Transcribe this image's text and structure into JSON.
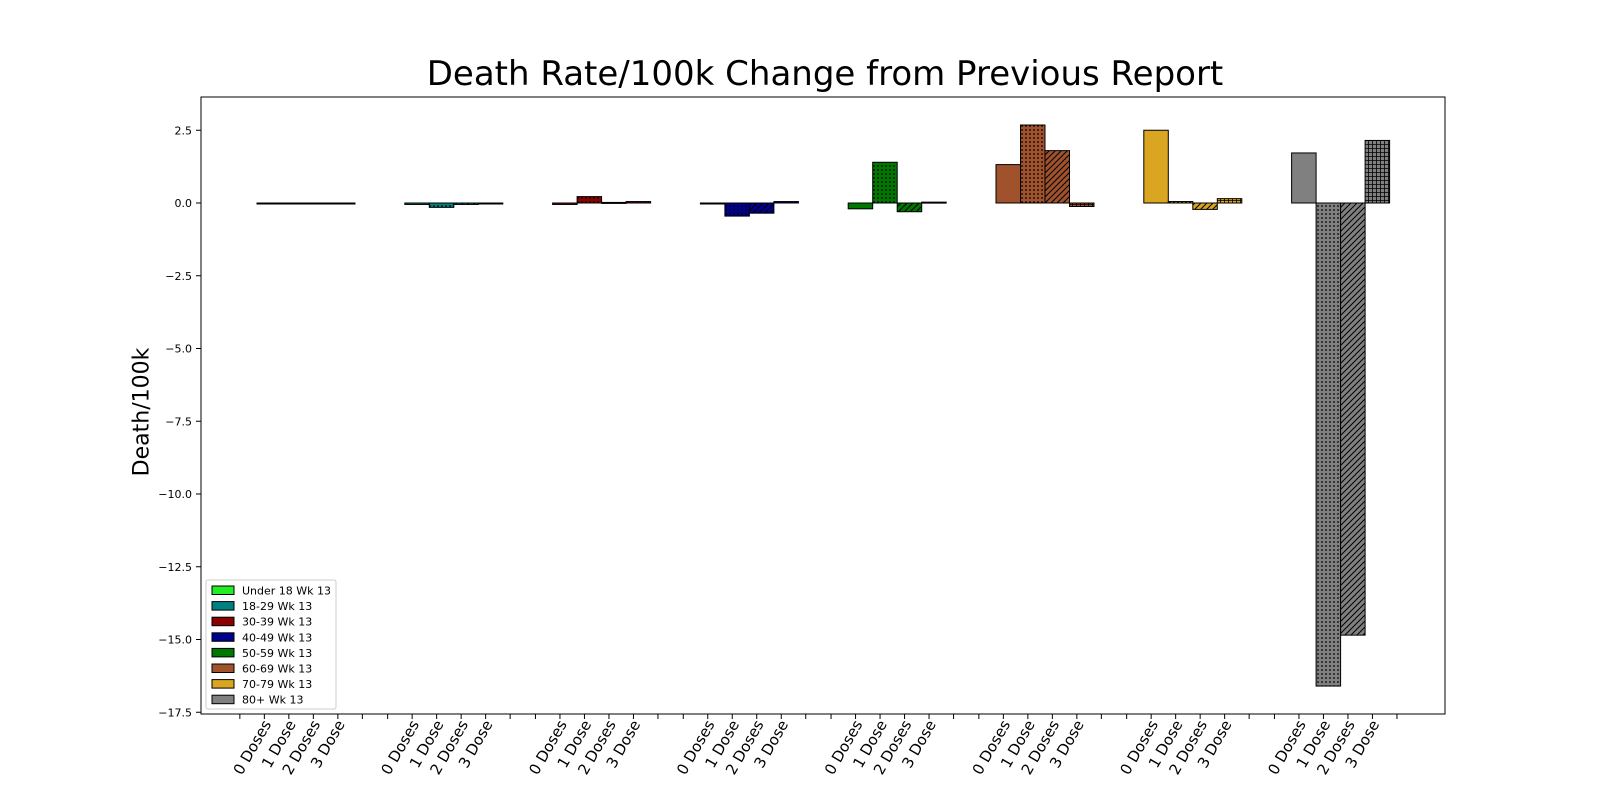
{
  "chart_data": {
    "type": "bar",
    "title": "Death Rate/100k Change from Previous Report",
    "xlabel": "",
    "ylabel": "Death/100k",
    "ylim": [
      -17.5,
      3.5
    ],
    "yticks": [
      2.5,
      0.0,
      -2.5,
      -5.0,
      -7.5,
      -10.0,
      -12.5,
      -15.0,
      -17.5
    ],
    "ytick_labels": [
      "2.5",
      "0.0",
      "−2.5",
      "−5.0",
      "−7.5",
      "−10.0",
      "−12.5",
      "−15.0",
      "−17.5"
    ],
    "categories": [
      "0 Doses",
      "1 Dose",
      "2 Doses",
      "3 Dose"
    ],
    "grid": false,
    "legend_position": "lower-left",
    "series": [
      {
        "name": "Under 18 Wk 13",
        "color": "#22ee22",
        "values": [
          0.0,
          0.0,
          0.0,
          0.0
        ]
      },
      {
        "name": "18-29 Wk 13",
        "color": "#008080",
        "values": [
          -0.05,
          -0.15,
          -0.05,
          0.0
        ]
      },
      {
        "name": "30-39 Wk 13",
        "color": "#8b0000",
        "values": [
          -0.05,
          0.22,
          0.02,
          0.05
        ]
      },
      {
        "name": "40-49 Wk 13",
        "color": "#00008b",
        "values": [
          0.0,
          -0.45,
          -0.35,
          0.05
        ]
      },
      {
        "name": "50-59 Wk 13",
        "color": "#007800",
        "values": [
          -0.2,
          1.4,
          -0.3,
          0.03
        ]
      },
      {
        "name": "60-69 Wk 13",
        "color": "#a0522d",
        "values": [
          1.32,
          2.68,
          1.8,
          -0.12
        ]
      },
      {
        "name": "70-79 Wk 13",
        "color": "#daa520",
        "values": [
          2.5,
          0.05,
          -0.22,
          0.15
        ]
      },
      {
        "name": "80+ Wk 13",
        "color": "#808080",
        "values": [
          1.72,
          -16.6,
          -14.85,
          2.15
        ]
      }
    ]
  }
}
